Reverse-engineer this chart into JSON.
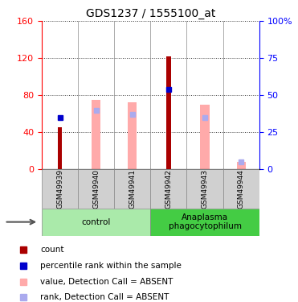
{
  "title": "GDS1237 / 1555100_at",
  "samples": [
    "GSM49939",
    "GSM49940",
    "GSM49941",
    "GSM49942",
    "GSM49943",
    "GSM49944"
  ],
  "count_values": [
    45,
    0,
    0,
    122,
    0,
    0
  ],
  "percentile_rank_pct": [
    35,
    0,
    0,
    54,
    0,
    0
  ],
  "absent_value": [
    0,
    75,
    72,
    0,
    70,
    8
  ],
  "absent_rank_pct": [
    0,
    40,
    37,
    0,
    35,
    5
  ],
  "ylim_left": [
    0,
    160
  ],
  "ylim_right": [
    0,
    100
  ],
  "yticks_left": [
    0,
    40,
    80,
    120,
    160
  ],
  "yticks_right": [
    0,
    25,
    50,
    75,
    100
  ],
  "ytick_labels_right": [
    "0",
    "25",
    "50",
    "75",
    "100%"
  ],
  "groups": [
    {
      "label": "control",
      "samples_idx": [
        0,
        1,
        2
      ],
      "color": "#aaeaaa"
    },
    {
      "label": "Anaplasma\nphagocytophilum",
      "samples_idx": [
        3,
        4,
        5
      ],
      "color": "#44cc44"
    }
  ],
  "bar_color_red": "#aa0000",
  "bar_color_pink": "#ffaaaa",
  "square_color_blue": "#0000cc",
  "square_color_lightblue": "#aaaaee",
  "bg_color": "#d0d0d0",
  "plot_bg": "#ffffff",
  "legend_items": [
    {
      "color": "#aa0000",
      "label": "count"
    },
    {
      "color": "#0000cc",
      "label": "percentile rank within the sample"
    },
    {
      "color": "#ffaaaa",
      "label": "value, Detection Call = ABSENT"
    },
    {
      "color": "#aaaaee",
      "label": "rank, Detection Call = ABSENT"
    }
  ]
}
